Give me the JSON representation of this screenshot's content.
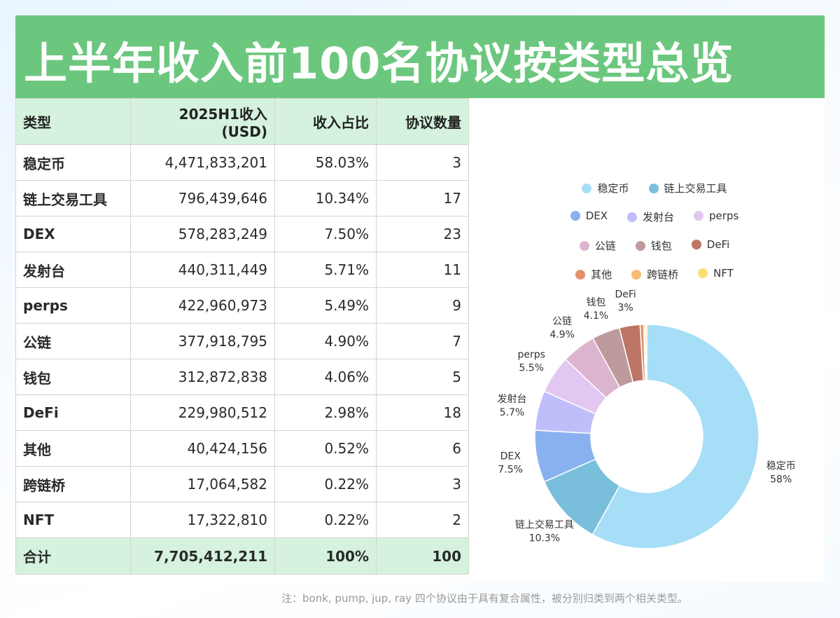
{
  "title": "上半年收入前100名协议按类型总览",
  "table": {
    "headers": [
      "类型",
      "2025H1收入(USD)",
      "收入占比",
      "协议数量"
    ],
    "rows": [
      [
        "稳定币",
        "4,471,833,201",
        "58.03%",
        "3"
      ],
      [
        "链上交易工具",
        "796,439,646",
        "10.34%",
        "17"
      ],
      [
        "DEX",
        "578,283,249",
        "7.50%",
        "23"
      ],
      [
        "发射台",
        "440,311,449",
        "5.71%",
        "11"
      ],
      [
        "perps",
        "422,960,973",
        "5.49%",
        "9"
      ],
      [
        "公链",
        "377,918,795",
        "4.90%",
        "7"
      ],
      [
        "钱包",
        "312,872,838",
        "4.06%",
        "5"
      ],
      [
        "DeFi",
        "229,980,512",
        "2.98%",
        "18"
      ],
      [
        "其他",
        "40,424,156",
        "0.52%",
        "6"
      ],
      [
        "跨链桥",
        "17,064,582",
        "0.22%",
        "3"
      ],
      [
        "NFT",
        "17,322,810",
        "0.22%",
        "2"
      ]
    ],
    "total": [
      "合计",
      "7,705,412,211",
      "100%",
      "100"
    ]
  },
  "chart_data": {
    "type": "pie",
    "variant": "donut",
    "legend_position": "top",
    "categories": [
      "稳定币",
      "链上交易工具",
      "DEX",
      "发射台",
      "perps",
      "公链",
      "钱包",
      "DeFi",
      "其他",
      "跨链桥",
      "NFT"
    ],
    "values": [
      58.03,
      10.34,
      7.5,
      5.71,
      5.49,
      4.9,
      4.06,
      2.98,
      0.52,
      0.22,
      0.22
    ],
    "data_labels": [
      "58%",
      "10.3%",
      "7.5%",
      "5.7%",
      "5.5%",
      "4.9%",
      "4.1%",
      "3%",
      "",
      "",
      ""
    ],
    "colors": [
      "#a6ddf7",
      "#79bfdc",
      "#8ab1ef",
      "#c0befa",
      "#e2c8f1",
      "#ddb4cf",
      "#bf9a9c",
      "#bd7565",
      "#e2926b",
      "#f6bd72",
      "#f8df6e"
    ]
  },
  "legend_rows": [
    [
      0,
      1
    ],
    [
      2,
      3,
      4
    ],
    [
      5,
      6,
      7
    ],
    [
      8,
      9,
      10
    ]
  ],
  "note": "注：bonk, pump, jup, ray 四个协议由于具有复合属性，被分别归类到两个相关类型。"
}
